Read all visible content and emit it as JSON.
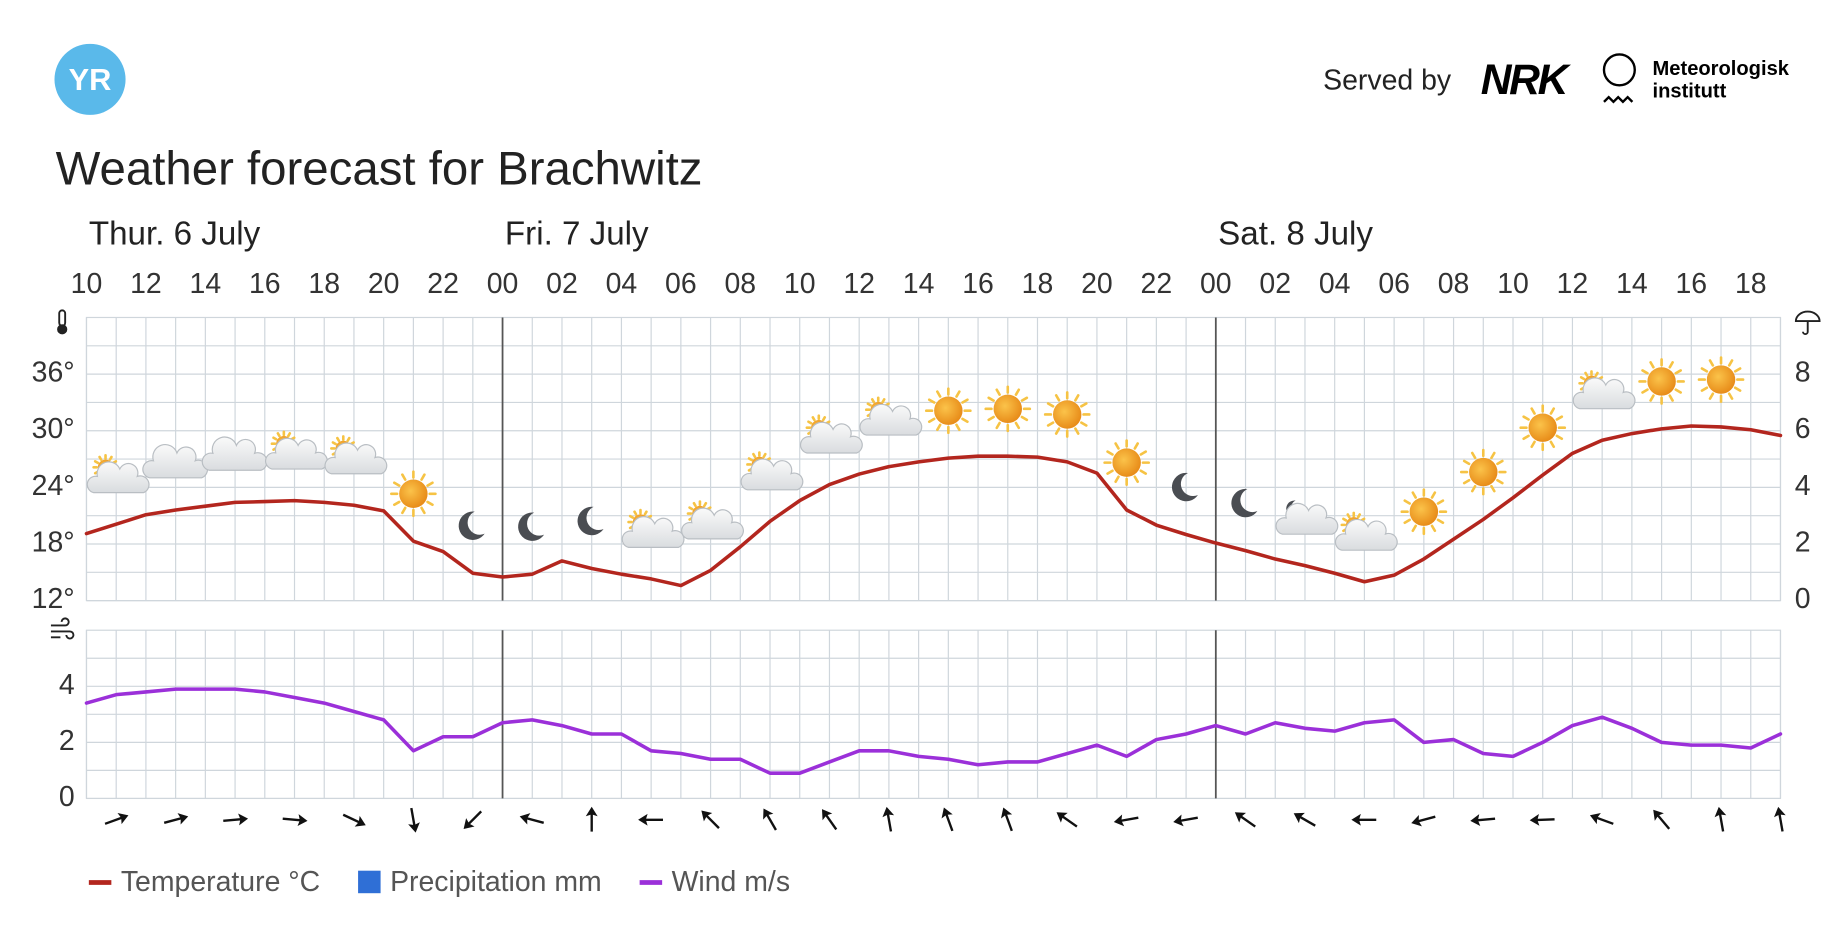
{
  "header": {
    "logo": "YR",
    "served_by": "Served by",
    "partner": "NRK",
    "institute_line1": "Meteorologisk",
    "institute_line2": "institutt"
  },
  "chart_data": [
    {
      "type": "line",
      "title": "Weather forecast for Brachwitz",
      "days": [
        "Thur. 6 July",
        "Fri. 7 July",
        "Sat. 8 July"
      ],
      "categories": [
        "10",
        null,
        "12",
        null,
        "14",
        null,
        "16",
        null,
        "18",
        null,
        "20",
        null,
        "22",
        null,
        "00",
        null,
        "02",
        null,
        "04",
        null,
        "06",
        null,
        "08",
        null,
        "10",
        null,
        "12",
        null,
        "14",
        null,
        "16",
        null,
        "18",
        null,
        "20",
        null,
        "22",
        null,
        "00",
        null,
        "02",
        null,
        "04",
        null,
        "06",
        null,
        "08",
        null,
        "10",
        null,
        "12",
        null,
        "14",
        null,
        "16",
        null,
        "18",
        null
      ],
      "series": [
        {
          "name": "Temperature °C",
          "color": "#b3261e",
          "values": [
            19.1,
            20.1,
            21.1,
            21.6,
            22.0,
            22.4,
            22.5,
            22.6,
            22.4,
            22.1,
            21.5,
            18.3,
            17.2,
            14.9,
            14.5,
            14.8,
            16.2,
            15.4,
            14.8,
            14.3,
            13.6,
            15.2,
            17.7,
            20.4,
            22.6,
            24.3,
            25.4,
            26.2,
            26.7,
            27.1,
            27.3,
            27.3,
            27.2,
            26.7,
            25.5,
            21.6,
            20.0,
            19.0,
            18.1,
            17.3,
            16.4,
            15.7,
            14.9,
            14.0,
            14.7,
            16.4,
            18.5,
            20.6,
            22.9,
            25.3,
            27.6,
            29.0,
            29.7,
            30.2,
            30.5,
            30.4,
            30.1,
            29.5
          ]
        },
        {
          "name": "Precipitation mm",
          "color": "#2f6fd6",
          "axis": "y2",
          "values": [
            0,
            0,
            0,
            0,
            0,
            0,
            0,
            0,
            0,
            0,
            0,
            0,
            0,
            0,
            0,
            0,
            0,
            0,
            0,
            0,
            0,
            0,
            0,
            0,
            0,
            0,
            0,
            0,
            0,
            0,
            0,
            0,
            0,
            0,
            0,
            0,
            0,
            0,
            0,
            0,
            0,
            0,
            0,
            0,
            0,
            0,
            0,
            0,
            0,
            0,
            0,
            0,
            0,
            0,
            0,
            0,
            0,
            0
          ]
        }
      ],
      "ylim": [
        12,
        42
      ],
      "yticks": [
        {
          "value": 12,
          "label": "12°"
        },
        {
          "value": 18,
          "label": "18°"
        },
        {
          "value": 24,
          "label": "24°"
        },
        {
          "value": 30,
          "label": "30°"
        },
        {
          "value": 36,
          "label": "36°"
        }
      ],
      "y2lim": [
        0,
        10
      ],
      "y2ticks": [
        0,
        2,
        4,
        6,
        8
      ],
      "grid": true,
      "symbols": [
        "partly-day",
        "cloudy",
        "cloudy",
        "partly-day",
        "partly-day",
        "sun",
        "moon",
        "moon",
        "moon",
        "partly-day",
        "partly-day",
        "partly-day",
        "partly-day",
        "partly-day",
        "sun",
        "sun",
        "sun",
        "sun",
        "moon",
        "moon",
        "partly-night",
        "partly-day",
        "sun",
        "sun",
        "sun",
        "partly-day",
        "sun",
        "sun"
      ]
    },
    {
      "type": "line",
      "series": [
        {
          "name": "Wind m/s",
          "color": "#9b30d9",
          "values": [
            3.4,
            3.7,
            3.8,
            3.9,
            3.9,
            3.9,
            3.8,
            3.6,
            3.4,
            3.1,
            2.8,
            1.7,
            2.2,
            2.2,
            2.7,
            2.8,
            2.6,
            2.3,
            2.3,
            1.7,
            1.6,
            1.4,
            1.4,
            0.9,
            0.9,
            1.3,
            1.7,
            1.7,
            1.5,
            1.4,
            1.2,
            1.3,
            1.3,
            1.6,
            1.9,
            1.5,
            2.1,
            2.3,
            2.6,
            2.3,
            2.7,
            2.5,
            2.4,
            2.7,
            2.8,
            2.0,
            2.1,
            1.6,
            1.5,
            2.0,
            2.6,
            2.9,
            2.5,
            2.0,
            1.9,
            1.9,
            1.8,
            2.3
          ]
        }
      ],
      "ylim": [
        0,
        6
      ],
      "yticks": [
        0,
        2,
        4
      ],
      "grid": true,
      "wind_arrow_angles": [
        -20,
        -15,
        -5,
        5,
        25,
        80,
        135,
        -165,
        -90,
        180,
        -135,
        -120,
        -125,
        -100,
        -110,
        -110,
        -145,
        170,
        170,
        -145,
        -150,
        180,
        165,
        175,
        178,
        -160,
        -130,
        -100,
        -100
      ]
    }
  ]
}
